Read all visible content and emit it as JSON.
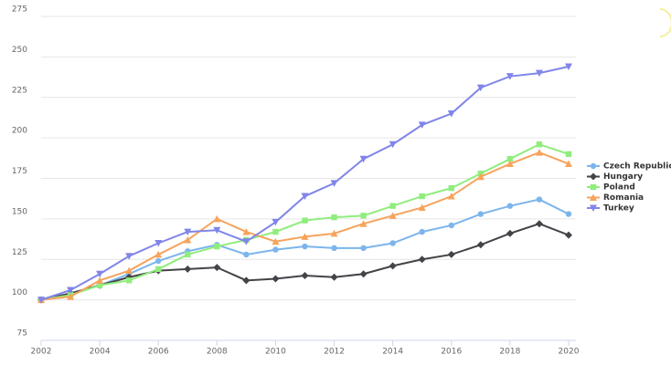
{
  "chart_data": {
    "type": "line",
    "x": [
      2002,
      2003,
      2004,
      2005,
      2006,
      2007,
      2008,
      2009,
      2010,
      2011,
      2012,
      2013,
      2014,
      2015,
      2016,
      2017,
      2018,
      2019,
      2020
    ],
    "xlim": [
      2002,
      2020
    ],
    "xticks": [
      2002,
      2004,
      2006,
      2008,
      2010,
      2012,
      2014,
      2016,
      2018,
      2020
    ],
    "ylim": [
      75,
      275
    ],
    "yticks": [
      75,
      100,
      125,
      150,
      175,
      200,
      225,
      250,
      275
    ],
    "grid": true,
    "legend": "right",
    "series": [
      {
        "name": "Czech Republic",
        "color": "#7cb5ec",
        "marker": "circle",
        "values": [
          100,
          104,
          109,
          116,
          124,
          130,
          134,
          128,
          131,
          133,
          132,
          132,
          135,
          142,
          146,
          153,
          158,
          162,
          153
        ]
      },
      {
        "name": "Hungary",
        "color": "#434348",
        "marker": "diamond",
        "values": [
          100,
          104,
          109,
          114,
          118,
          119,
          120,
          112,
          113,
          115,
          114,
          116,
          121,
          125,
          128,
          134,
          141,
          147,
          140
        ]
      },
      {
        "name": "Poland",
        "color": "#90ed7d",
        "marker": "square",
        "values": [
          100,
          103,
          109,
          112,
          119,
          128,
          133,
          137,
          142,
          149,
          151,
          152,
          158,
          164,
          169,
          178,
          187,
          196,
          190
        ]
      },
      {
        "name": "Romania",
        "color": "#f7a35c",
        "marker": "triangle",
        "values": [
          100,
          102,
          112,
          118,
          128,
          137,
          150,
          142,
          136,
          139,
          141,
          147,
          152,
          157,
          164,
          176,
          184,
          191,
          184
        ]
      },
      {
        "name": "Turkey",
        "color": "#8085e9",
        "marker": "triangle-down",
        "values": [
          100,
          106,
          116,
          127,
          135,
          142,
          143,
          136,
          148,
          164,
          172,
          187,
          196,
          208,
          215,
          231,
          238,
          240,
          244
        ]
      }
    ]
  }
}
